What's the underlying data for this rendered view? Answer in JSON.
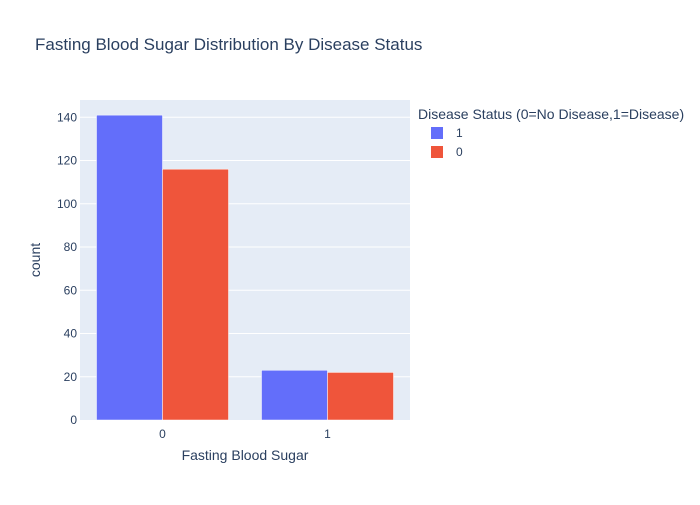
{
  "chart_data": {
    "type": "bar",
    "title": "Fasting Blood Sugar Distribution By Disease Status",
    "xlabel": "Fasting Blood Sugar",
    "ylabel": "count",
    "categories": [
      "0",
      "1"
    ],
    "series": [
      {
        "name": "1",
        "values": [
          141,
          23
        ],
        "color": "#636efa"
      },
      {
        "name": "0",
        "values": [
          116,
          22
        ],
        "color": "#ef553b"
      }
    ],
    "ylim": [
      0,
      148
    ],
    "yticks": [
      0,
      20,
      40,
      60,
      80,
      100,
      120,
      140
    ],
    "grid": true,
    "legend": {
      "title": "Disease Status (0=No Disease,1=Disease)",
      "placement": "top-right"
    },
    "plot_background": "#e5ecf6"
  }
}
